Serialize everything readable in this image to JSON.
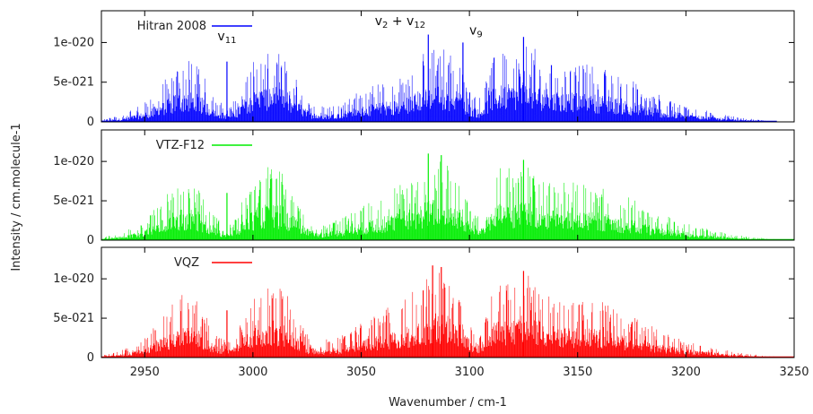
{
  "chart_data": {
    "type": "line",
    "xlabel": "Wavenumber / cm-1",
    "ylabel": "Intensity / cm.molecule-1",
    "xlim": [
      2930,
      3250
    ],
    "ylim": [
      0,
      1.4e-20
    ],
    "x_ticks": [
      "2950",
      "3000",
      "3050",
      "3100",
      "3150",
      "3200",
      "3250"
    ],
    "x_tick_values": [
      2950,
      3000,
      3050,
      3100,
      3150,
      3200,
      3250
    ],
    "y_ticks": [
      "0",
      "5e-021",
      "1e-020"
    ],
    "y_tick_values": [
      0,
      5e-21,
      1e-20
    ],
    "grid": false,
    "legend_position": "top-left",
    "envelope_x": [
      2930,
      2940,
      2950,
      2960,
      2965,
      2970,
      2975,
      2980,
      2985,
      2990,
      2995,
      3000,
      3005,
      3010,
      3015,
      3020,
      3025,
      3030,
      3040,
      3050,
      3060,
      3070,
      3075,
      3080,
      3085,
      3090,
      3095,
      3100,
      3105,
      3110,
      3115,
      3120,
      3125,
      3130,
      3135,
      3140,
      3150,
      3160,
      3170,
      3180,
      3190,
      3200,
      3210,
      3220,
      3230,
      3240,
      3250
    ],
    "series": [
      {
        "name": "Hitran 2008",
        "color": "#0000ff",
        "x_start": 2930,
        "x_end": 3242,
        "spikes": [
          {
            "x": 2988,
            "y": 7.6e-21
          },
          {
            "x": 3081,
            "y": 1.1e-20
          },
          {
            "x": 3097,
            "y": 1e-20
          },
          {
            "x": 3125,
            "y": 1.07e-20
          }
        ],
        "envelope": [
          3e-22,
          1e-21,
          2.5e-21,
          5.5e-21,
          7.5e-21,
          8e-21,
          7e-21,
          4.5e-21,
          2.5e-21,
          2e-21,
          5e-21,
          8e-21,
          8.8e-21,
          9e-21,
          8e-21,
          5.5e-21,
          3e-21,
          2e-21,
          2.5e-21,
          4e-21,
          5e-21,
          6e-21,
          7.5e-21,
          9e-21,
          9.5e-21,
          9e-21,
          8e-21,
          4.5e-21,
          3e-21,
          8e-21,
          9.5e-21,
          9.5e-21,
          1e-20,
          9.5e-21,
          8.5e-21,
          7.5e-21,
          7.5e-21,
          7e-21,
          6e-21,
          4.5e-21,
          3.2e-21,
          2.2e-21,
          1.4e-21,
          8e-22,
          4e-22,
          1e-22,
          0
        ]
      },
      {
        "name": "VTZ-F12",
        "color": "#00ee00",
        "x_start": 2930,
        "x_end": 3250,
        "spikes": [
          {
            "x": 2988,
            "y": 6e-21
          },
          {
            "x": 3081,
            "y": 1.1e-20
          },
          {
            "x": 3087,
            "y": 1.08e-20
          },
          {
            "x": 3125,
            "y": 1.02e-20
          }
        ],
        "envelope": [
          3e-22,
          1e-21,
          2.5e-21,
          6e-21,
          7.8e-21,
          8e-21,
          7.2e-21,
          4.5e-21,
          2.5e-21,
          2e-21,
          5e-21,
          8e-21,
          9.2e-21,
          9.4e-21,
          8.4e-21,
          5.5e-21,
          3e-21,
          2e-21,
          2.8e-21,
          4.5e-21,
          6e-21,
          7.5e-21,
          8.5e-21,
          1e-20,
          1.08e-20,
          1e-20,
          8.5e-21,
          4.5e-21,
          3e-21,
          8e-21,
          9.5e-21,
          9.5e-21,
          9.8e-21,
          9.2e-21,
          8.5e-21,
          7.5e-21,
          7.5e-21,
          7e-21,
          6e-21,
          4.5e-21,
          3.2e-21,
          2.2e-21,
          1.4e-21,
          8e-22,
          4e-22,
          1.5e-22,
          5e-23
        ]
      },
      {
        "name": "VQZ",
        "color": "#ff0000",
        "x_start": 2930,
        "x_end": 3250,
        "spikes": [
          {
            "x": 2988,
            "y": 6e-21
          },
          {
            "x": 3083,
            "y": 1.17e-20
          },
          {
            "x": 3087,
            "y": 1.15e-20
          },
          {
            "x": 3125,
            "y": 1.1e-20
          }
        ],
        "envelope": [
          3e-22,
          1e-21,
          2.5e-21,
          6e-21,
          8e-21,
          8.2e-21,
          7.3e-21,
          4.5e-21,
          2.5e-21,
          2e-21,
          5e-21,
          8e-21,
          9.2e-21,
          9.5e-21,
          8.5e-21,
          5.5e-21,
          3e-21,
          2e-21,
          2.8e-21,
          4.5e-21,
          6e-21,
          7.5e-21,
          9e-21,
          1.05e-20,
          1.15e-20,
          1.1e-20,
          9e-21,
          5e-21,
          3e-21,
          8.5e-21,
          1e-20,
          1e-20,
          1.08e-20,
          1e-20,
          9e-21,
          7.8e-21,
          7.8e-21,
          7.2e-21,
          6.2e-21,
          4.6e-21,
          3.3e-21,
          2.3e-21,
          1.5e-21,
          9e-22,
          4.5e-22,
          1.5e-22,
          5e-23
        ]
      }
    ],
    "annotations": [
      {
        "base": "v",
        "sub": "11",
        "x": 2988,
        "y": 1.03e-20
      },
      {
        "base": "v",
        "sub": "2",
        "mid": " + v",
        "sub2": "12",
        "x": 3068,
        "y": 1.22e-20
      },
      {
        "base": "v",
        "sub": "9",
        "x": 3103,
        "y": 1.1e-20
      }
    ]
  }
}
